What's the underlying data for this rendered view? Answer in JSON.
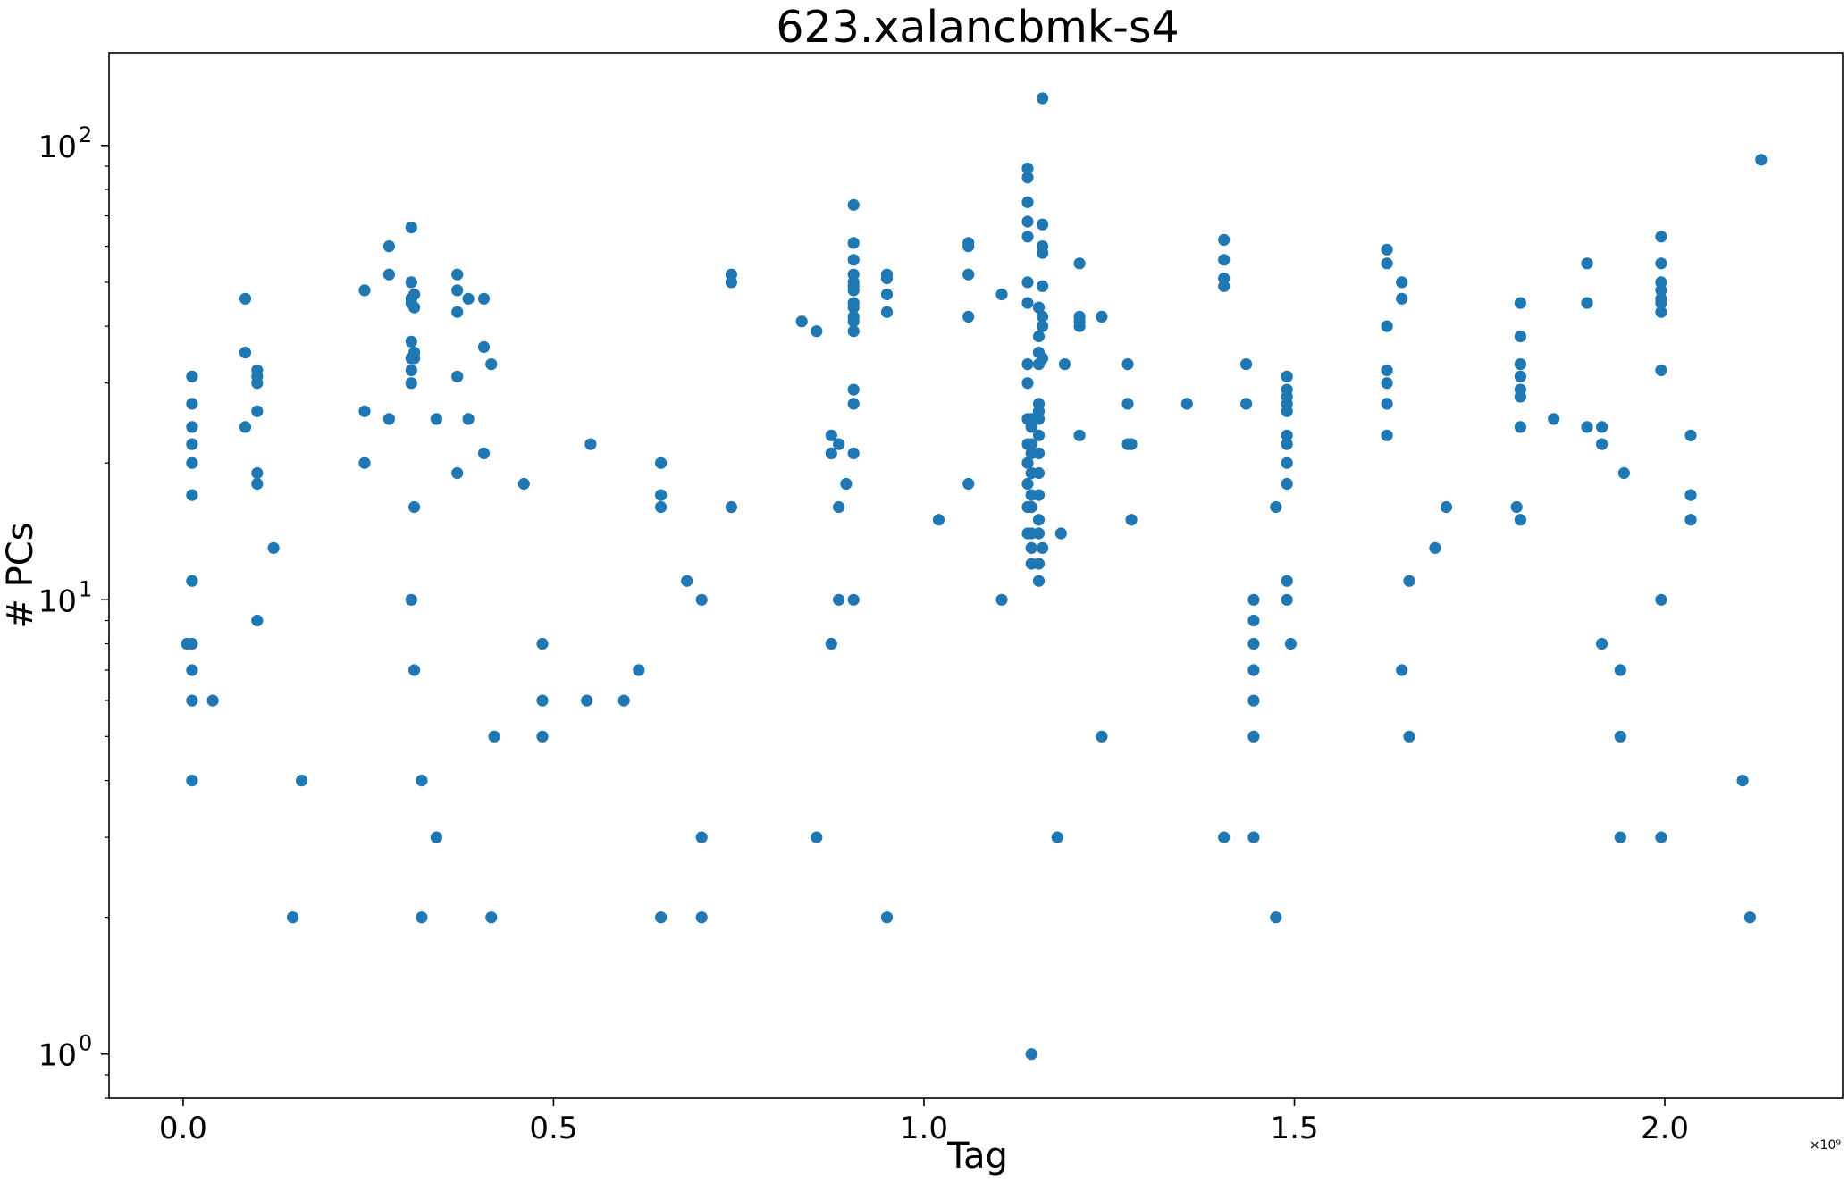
{
  "chart_data": {
    "type": "scatter",
    "title": "623.xalancbmk-s4",
    "xlabel": "Tag",
    "ylabel": "# PCs",
    "x_offset_label": "×10⁹",
    "x_scale": 1000000000,
    "xlim": [
      -0.1,
      2.24
    ],
    "ylim": [
      0.8,
      160
    ],
    "yscale": "log",
    "grid": false,
    "marker_color": "#1f77b4",
    "x_ticks": [
      {
        "value": 0.0,
        "label": "0.0"
      },
      {
        "value": 0.5,
        "label": "0.5"
      },
      {
        "value": 1.0,
        "label": "1.0"
      },
      {
        "value": 1.5,
        "label": "1.5"
      },
      {
        "value": 2.0,
        "label": "2.0"
      }
    ],
    "y_ticks": [
      {
        "value": 1,
        "base": "10",
        "exp": "0"
      },
      {
        "value": 10,
        "base": "10",
        "exp": "1"
      },
      {
        "value": 100,
        "base": "10",
        "exp": "2"
      }
    ],
    "points": [
      [
        0.005,
        8
      ],
      [
        0.012,
        8
      ],
      [
        0.012,
        31
      ],
      [
        0.012,
        27
      ],
      [
        0.012,
        24
      ],
      [
        0.012,
        22
      ],
      [
        0.012,
        20
      ],
      [
        0.012,
        17
      ],
      [
        0.012,
        11
      ],
      [
        0.012,
        7
      ],
      [
        0.012,
        6
      ],
      [
        0.012,
        4
      ],
      [
        0.04,
        6
      ],
      [
        0.084,
        46
      ],
      [
        0.084,
        35
      ],
      [
        0.084,
        24
      ],
      [
        0.1,
        32
      ],
      [
        0.1,
        31
      ],
      [
        0.1,
        30
      ],
      [
        0.1,
        26
      ],
      [
        0.1,
        19
      ],
      [
        0.1,
        18
      ],
      [
        0.1,
        9
      ],
      [
        0.122,
        13
      ],
      [
        0.148,
        2
      ],
      [
        0.16,
        4
      ],
      [
        0.245,
        48
      ],
      [
        0.245,
        26
      ],
      [
        0.245,
        20
      ],
      [
        0.278,
        60
      ],
      [
        0.278,
        52
      ],
      [
        0.278,
        25
      ],
      [
        0.308,
        66
      ],
      [
        0.308,
        50
      ],
      [
        0.308,
        46
      ],
      [
        0.308,
        45
      ],
      [
        0.308,
        37
      ],
      [
        0.308,
        34
      ],
      [
        0.308,
        32
      ],
      [
        0.308,
        30
      ],
      [
        0.308,
        10
      ],
      [
        0.312,
        47
      ],
      [
        0.312,
        44
      ],
      [
        0.312,
        35
      ],
      [
        0.312,
        34
      ],
      [
        0.312,
        16
      ],
      [
        0.312,
        7
      ],
      [
        0.322,
        4
      ],
      [
        0.322,
        2
      ],
      [
        0.342,
        25
      ],
      [
        0.342,
        3
      ],
      [
        0.37,
        52
      ],
      [
        0.37,
        48
      ],
      [
        0.37,
        43
      ],
      [
        0.37,
        31
      ],
      [
        0.37,
        19
      ],
      [
        0.385,
        46
      ],
      [
        0.385,
        25
      ],
      [
        0.406,
        46
      ],
      [
        0.406,
        36
      ],
      [
        0.406,
        21
      ],
      [
        0.416,
        33
      ],
      [
        0.416,
        2
      ],
      [
        0.42,
        5
      ],
      [
        0.46,
        18
      ],
      [
        0.485,
        8
      ],
      [
        0.485,
        6
      ],
      [
        0.485,
        5
      ],
      [
        0.545,
        6
      ],
      [
        0.55,
        22
      ],
      [
        0.595,
        6
      ],
      [
        0.615,
        7
      ],
      [
        0.645,
        20
      ],
      [
        0.645,
        17
      ],
      [
        0.645,
        16
      ],
      [
        0.645,
        2
      ],
      [
        0.68,
        11
      ],
      [
        0.7,
        10
      ],
      [
        0.7,
        3
      ],
      [
        0.7,
        2
      ],
      [
        0.74,
        52
      ],
      [
        0.74,
        50
      ],
      [
        0.74,
        16
      ],
      [
        0.835,
        41
      ],
      [
        0.855,
        39
      ],
      [
        0.855,
        3
      ],
      [
        0.875,
        23
      ],
      [
        0.875,
        21
      ],
      [
        0.875,
        8
      ],
      [
        0.885,
        22
      ],
      [
        0.885,
        16
      ],
      [
        0.885,
        10
      ],
      [
        0.895,
        18
      ],
      [
        0.905,
        74
      ],
      [
        0.905,
        61
      ],
      [
        0.905,
        56
      ],
      [
        0.905,
        52
      ],
      [
        0.905,
        50
      ],
      [
        0.905,
        49
      ],
      [
        0.905,
        48
      ],
      [
        0.905,
        45
      ],
      [
        0.905,
        44
      ],
      [
        0.905,
        42
      ],
      [
        0.905,
        41
      ],
      [
        0.905,
        39
      ],
      [
        0.905,
        29
      ],
      [
        0.905,
        27
      ],
      [
        0.905,
        21
      ],
      [
        0.905,
        10
      ],
      [
        0.95,
        52
      ],
      [
        0.95,
        51
      ],
      [
        0.95,
        47
      ],
      [
        0.95,
        43
      ],
      [
        0.95,
        2
      ],
      [
        1.02,
        15
      ],
      [
        1.06,
        61
      ],
      [
        1.06,
        60
      ],
      [
        1.06,
        52
      ],
      [
        1.06,
        42
      ],
      [
        1.06,
        18
      ],
      [
        1.105,
        47
      ],
      [
        1.105,
        10
      ],
      [
        1.14,
        89
      ],
      [
        1.14,
        85
      ],
      [
        1.14,
        75
      ],
      [
        1.14,
        68
      ],
      [
        1.14,
        63
      ],
      [
        1.14,
        50
      ],
      [
        1.14,
        45
      ],
      [
        1.14,
        33
      ],
      [
        1.14,
        30
      ],
      [
        1.14,
        25
      ],
      [
        1.14,
        22
      ],
      [
        1.14,
        20
      ],
      [
        1.14,
        18
      ],
      [
        1.14,
        16
      ],
      [
        1.14,
        14
      ],
      [
        1.145,
        25
      ],
      [
        1.145,
        24
      ],
      [
        1.145,
        22
      ],
      [
        1.145,
        21
      ],
      [
        1.145,
        19
      ],
      [
        1.145,
        17
      ],
      [
        1.145,
        16
      ],
      [
        1.145,
        14
      ],
      [
        1.145,
        13
      ],
      [
        1.145,
        12
      ],
      [
        1.145,
        1
      ],
      [
        1.155,
        44
      ],
      [
        1.155,
        38
      ],
      [
        1.155,
        35
      ],
      [
        1.155,
        33
      ],
      [
        1.155,
        27
      ],
      [
        1.155,
        26
      ],
      [
        1.155,
        25
      ],
      [
        1.155,
        23
      ],
      [
        1.155,
        21
      ],
      [
        1.155,
        19
      ],
      [
        1.155,
        17
      ],
      [
        1.155,
        15
      ],
      [
        1.155,
        14
      ],
      [
        1.155,
        12
      ],
      [
        1.155,
        11
      ],
      [
        1.16,
        127
      ],
      [
        1.16,
        67
      ],
      [
        1.16,
        60
      ],
      [
        1.16,
        58
      ],
      [
        1.16,
        49
      ],
      [
        1.16,
        42
      ],
      [
        1.16,
        40
      ],
      [
        1.16,
        34
      ],
      [
        1.16,
        13
      ],
      [
        1.18,
        3
      ],
      [
        1.185,
        14
      ],
      [
        1.19,
        33
      ],
      [
        1.21,
        55
      ],
      [
        1.21,
        42
      ],
      [
        1.21,
        41
      ],
      [
        1.21,
        40
      ],
      [
        1.21,
        23
      ],
      [
        1.24,
        42
      ],
      [
        1.24,
        5
      ],
      [
        1.275,
        33
      ],
      [
        1.275,
        27
      ],
      [
        1.275,
        22
      ],
      [
        1.28,
        22
      ],
      [
        1.28,
        15
      ],
      [
        1.355,
        27
      ],
      [
        1.405,
        62
      ],
      [
        1.405,
        56
      ],
      [
        1.405,
        51
      ],
      [
        1.405,
        49
      ],
      [
        1.405,
        3
      ],
      [
        1.435,
        33
      ],
      [
        1.435,
        27
      ],
      [
        1.445,
        10
      ],
      [
        1.445,
        9
      ],
      [
        1.445,
        8
      ],
      [
        1.445,
        7
      ],
      [
        1.445,
        6
      ],
      [
        1.445,
        5
      ],
      [
        1.445,
        3
      ],
      [
        1.475,
        16
      ],
      [
        1.475,
        2
      ],
      [
        1.49,
        31
      ],
      [
        1.49,
        29
      ],
      [
        1.49,
        28
      ],
      [
        1.49,
        27
      ],
      [
        1.49,
        26
      ],
      [
        1.49,
        23
      ],
      [
        1.49,
        22
      ],
      [
        1.49,
        20
      ],
      [
        1.49,
        18
      ],
      [
        1.49,
        11
      ],
      [
        1.49,
        10
      ],
      [
        1.495,
        8
      ],
      [
        1.625,
        59
      ],
      [
        1.625,
        55
      ],
      [
        1.625,
        40
      ],
      [
        1.625,
        32
      ],
      [
        1.625,
        30
      ],
      [
        1.625,
        27
      ],
      [
        1.625,
        23
      ],
      [
        1.645,
        50
      ],
      [
        1.645,
        46
      ],
      [
        1.645,
        7
      ],
      [
        1.655,
        11
      ],
      [
        1.655,
        5
      ],
      [
        1.69,
        13
      ],
      [
        1.705,
        16
      ],
      [
        1.8,
        16
      ],
      [
        1.805,
        45
      ],
      [
        1.805,
        38
      ],
      [
        1.805,
        33
      ],
      [
        1.805,
        31
      ],
      [
        1.805,
        29
      ],
      [
        1.805,
        28
      ],
      [
        1.805,
        24
      ],
      [
        1.805,
        15
      ],
      [
        1.85,
        25
      ],
      [
        1.895,
        55
      ],
      [
        1.895,
        45
      ],
      [
        1.895,
        24
      ],
      [
        1.915,
        24
      ],
      [
        1.915,
        22
      ],
      [
        1.915,
        8
      ],
      [
        1.94,
        7
      ],
      [
        1.94,
        5
      ],
      [
        1.94,
        3
      ],
      [
        1.945,
        19
      ],
      [
        1.995,
        63
      ],
      [
        1.995,
        55
      ],
      [
        1.995,
        50
      ],
      [
        1.995,
        48
      ],
      [
        1.995,
        46
      ],
      [
        1.995,
        45
      ],
      [
        1.995,
        43
      ],
      [
        1.995,
        32
      ],
      [
        1.995,
        10
      ],
      [
        1.995,
        3
      ],
      [
        2.035,
        23
      ],
      [
        2.035,
        17
      ],
      [
        2.035,
        15
      ],
      [
        2.105,
        4
      ],
      [
        2.115,
        2
      ],
      [
        2.13,
        93
      ]
    ]
  }
}
